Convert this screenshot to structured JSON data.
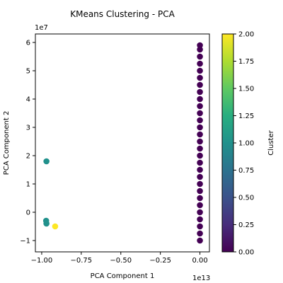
{
  "chart_data": {
    "type": "scatter",
    "title": "KMeans Clustering - PCA",
    "xlabel": "PCA Component 1",
    "ylabel": "PCA Component 2",
    "x_offset_label": "1e13",
    "y_offset_label": "1e7",
    "xlim": [
      -1.04,
      0.06
    ],
    "ylim": [
      -1.4,
      6.3
    ],
    "x_ticks": [
      -1.0,
      -0.75,
      -0.5,
      -0.25,
      0.0
    ],
    "x_tick_labels": [
      "−1.00",
      "−0.75",
      "−0.50",
      "−0.25",
      "0.00"
    ],
    "y_ticks": [
      -1,
      0,
      1,
      2,
      3,
      4,
      5,
      6
    ],
    "y_tick_labels": [
      "−1",
      "0",
      "1",
      "2",
      "3",
      "4",
      "5",
      "6"
    ],
    "colorbar": {
      "label": "Cluster",
      "range": [
        0,
        2
      ],
      "colormap": "viridis",
      "ticks": [
        0.0,
        0.25,
        0.5,
        0.75,
        1.0,
        1.25,
        1.5,
        1.75,
        2.0
      ],
      "tick_labels": [
        "0.00",
        "0.25",
        "0.50",
        "0.75",
        "1.00",
        "1.25",
        "1.50",
        "1.75",
        "2.00"
      ]
    },
    "grid": false,
    "points": [
      {
        "x": -0.97,
        "y": 1.8,
        "cluster": 1
      },
      {
        "x": -0.972,
        "y": -0.3,
        "cluster": 1
      },
      {
        "x": -0.97,
        "y": -0.4,
        "cluster": 1
      },
      {
        "x": -0.915,
        "y": -0.5,
        "cluster": 2
      },
      {
        "x": 0.0,
        "y": -1.0,
        "cluster": 0
      },
      {
        "x": 0.0,
        "y": -0.75,
        "cluster": 0
      },
      {
        "x": 0.0,
        "y": -0.5,
        "cluster": 0
      },
      {
        "x": 0.0,
        "y": -0.25,
        "cluster": 0
      },
      {
        "x": 0.0,
        "y": 0.0,
        "cluster": 0
      },
      {
        "x": 0.0,
        "y": 0.25,
        "cluster": 0
      },
      {
        "x": 0.0,
        "y": 0.5,
        "cluster": 0
      },
      {
        "x": 0.0,
        "y": 0.75,
        "cluster": 0
      },
      {
        "x": 0.0,
        "y": 1.0,
        "cluster": 0
      },
      {
        "x": 0.0,
        "y": 1.25,
        "cluster": 0
      },
      {
        "x": 0.0,
        "y": 1.5,
        "cluster": 0
      },
      {
        "x": 0.0,
        "y": 1.75,
        "cluster": 0
      },
      {
        "x": 0.0,
        "y": 2.0,
        "cluster": 0
      },
      {
        "x": 0.0,
        "y": 2.25,
        "cluster": 0
      },
      {
        "x": 0.0,
        "y": 2.5,
        "cluster": 0
      },
      {
        "x": 0.0,
        "y": 2.75,
        "cluster": 0
      },
      {
        "x": 0.0,
        "y": 3.0,
        "cluster": 0
      },
      {
        "x": 0.0,
        "y": 3.25,
        "cluster": 0
      },
      {
        "x": 0.0,
        "y": 3.5,
        "cluster": 0
      },
      {
        "x": 0.0,
        "y": 3.75,
        "cluster": 0
      },
      {
        "x": 0.0,
        "y": 4.0,
        "cluster": 0
      },
      {
        "x": 0.0,
        "y": 4.25,
        "cluster": 0
      },
      {
        "x": 0.0,
        "y": 4.5,
        "cluster": 0
      },
      {
        "x": 0.0,
        "y": 4.75,
        "cluster": 0
      },
      {
        "x": 0.0,
        "y": 5.0,
        "cluster": 0
      },
      {
        "x": 0.0,
        "y": 5.25,
        "cluster": 0
      },
      {
        "x": 0.0,
        "y": 5.5,
        "cluster": 0
      },
      {
        "x": 0.0,
        "y": 5.75,
        "cluster": 0
      },
      {
        "x": 0.0,
        "y": 5.9,
        "cluster": 0
      }
    ],
    "cluster_colors": [
      "#440154",
      "#21918c",
      "#fde725"
    ]
  }
}
